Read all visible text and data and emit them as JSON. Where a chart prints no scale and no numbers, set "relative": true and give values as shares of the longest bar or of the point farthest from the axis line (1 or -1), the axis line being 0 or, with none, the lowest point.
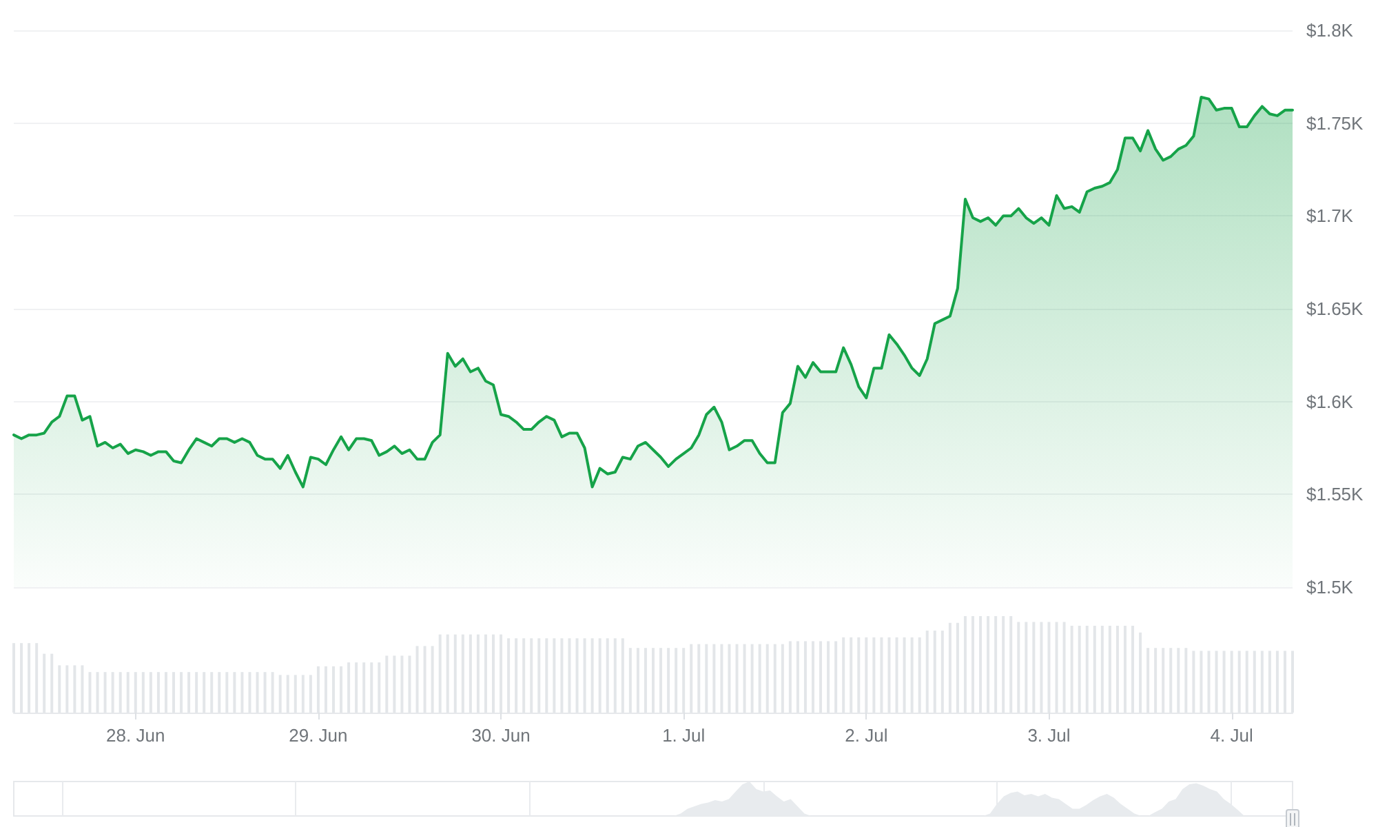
{
  "chart_data": [
    {
      "type": "area",
      "color": "#16a349",
      "grid": "y",
      "tick_labels": "y",
      "xlim": [
        "--06-27T08:00",
        "--07-04T08:00"
      ],
      "ylim": [
        1500,
        1800
      ],
      "yticks": [
        {
          "value": 1500,
          "label": "$1.5K"
        },
        {
          "value": 1550,
          "label": "$1.55K"
        },
        {
          "value": 1600,
          "label": "$1.6K"
        },
        {
          "value": 1650,
          "label": "$1.65K"
        },
        {
          "value": 1700,
          "label": "$1.7K"
        },
        {
          "value": 1750,
          "label": "$1.75K"
        },
        {
          "value": 1800,
          "label": "$1.8K"
        }
      ],
      "x": [
        "--06-27T08:00",
        "--06-27T09:00",
        "--06-27T10:00",
        "--06-27T11:00",
        "--06-27T12:00",
        "--06-27T13:00",
        "--06-27T14:00",
        "--06-27T15:00",
        "--06-27T16:00",
        "--06-27T17:00",
        "--06-27T18:00",
        "--06-27T19:00",
        "--06-27T20:00",
        "--06-27T21:00",
        "--06-27T22:00",
        "--06-27T23:00",
        "--06-28T00:00",
        "--06-28T01:00",
        "--06-28T02:00",
        "--06-28T03:00",
        "--06-28T04:00",
        "--06-28T05:00",
        "--06-28T06:00",
        "--06-28T07:00",
        "--06-28T08:00",
        "--06-28T09:00",
        "--06-28T10:00",
        "--06-28T11:00",
        "--06-28T12:00",
        "--06-28T13:00",
        "--06-28T14:00",
        "--06-28T15:00",
        "--06-28T16:00",
        "--06-28T17:00",
        "--06-28T18:00",
        "--06-28T19:00",
        "--06-28T20:00",
        "--06-28T21:00",
        "--06-28T22:00",
        "--06-28T23:00",
        "--06-29T00:00",
        "--06-29T01:00",
        "--06-29T02:00",
        "--06-29T03:00",
        "--06-29T04:00",
        "--06-29T05:00",
        "--06-29T06:00",
        "--06-29T07:00",
        "--06-29T08:00",
        "--06-29T09:00",
        "--06-29T10:00",
        "--06-29T11:00",
        "--06-29T12:00",
        "--06-29T13:00",
        "--06-29T14:00",
        "--06-29T15:00",
        "--06-29T16:00",
        "--06-29T17:00",
        "--06-29T18:00",
        "--06-29T19:00",
        "--06-29T20:00",
        "--06-29T21:00",
        "--06-29T22:00",
        "--06-29T23:00",
        "--06-30T00:00",
        "--06-30T01:00",
        "--06-30T02:00",
        "--06-30T03:00",
        "--06-30T04:00",
        "--06-30T05:00",
        "--06-30T06:00",
        "--06-30T07:00",
        "--06-30T08:00",
        "--06-30T09:00",
        "--06-30T10:00",
        "--06-30T11:00",
        "--06-30T12:00",
        "--06-30T13:00",
        "--06-30T14:00",
        "--06-30T15:00",
        "--06-30T16:00",
        "--06-30T17:00",
        "--06-30T18:00",
        "--06-30T19:00",
        "--06-30T20:00",
        "--06-30T21:00",
        "--06-30T22:00",
        "--06-30T23:00",
        "--07-01T00:00",
        "--07-01T01:00",
        "--07-01T02:00",
        "--07-01T03:00",
        "--07-01T04:00",
        "--07-01T05:00",
        "--07-01T06:00",
        "--07-01T07:00",
        "--07-01T08:00",
        "--07-01T09:00",
        "--07-01T10:00",
        "--07-01T11:00",
        "--07-01T12:00",
        "--07-01T13:00",
        "--07-01T14:00",
        "--07-01T15:00",
        "--07-01T16:00",
        "--07-01T17:00",
        "--07-01T18:00",
        "--07-01T19:00",
        "--07-01T20:00",
        "--07-01T21:00",
        "--07-01T22:00",
        "--07-01T23:00",
        "--07-02T00:00",
        "--07-02T01:00",
        "--07-02T02:00",
        "--07-02T03:00",
        "--07-02T04:00",
        "--07-02T05:00",
        "--07-02T06:00",
        "--07-02T07:00",
        "--07-02T08:00",
        "--07-02T09:00",
        "--07-02T10:00",
        "--07-02T11:00",
        "--07-02T12:00",
        "--07-02T13:00",
        "--07-02T14:00",
        "--07-02T15:00",
        "--07-02T16:00",
        "--07-02T17:00",
        "--07-02T18:00",
        "--07-02T19:00",
        "--07-02T20:00",
        "--07-02T21:00",
        "--07-02T22:00",
        "--07-02T23:00",
        "--07-03T00:00",
        "--07-03T01:00",
        "--07-03T02:00",
        "--07-03T03:00",
        "--07-03T04:00",
        "--07-03T05:00",
        "--07-03T06:00",
        "--07-03T07:00",
        "--07-03T08:00",
        "--07-03T09:00",
        "--07-03T10:00",
        "--07-03T11:00",
        "--07-03T12:00",
        "--07-03T13:00",
        "--07-03T14:00",
        "--07-03T15:00",
        "--07-03T16:00",
        "--07-03T17:00",
        "--07-03T18:00",
        "--07-03T19:00",
        "--07-03T20:00",
        "--07-03T21:00",
        "--07-03T22:00",
        "--07-03T23:00",
        "--07-04T00:00",
        "--07-04T01:00",
        "--07-04T02:00",
        "--07-04T03:00",
        "--07-04T04:00",
        "--07-04T05:00",
        "--07-04T06:00",
        "--07-04T07:00",
        "--07-04T08:00"
      ],
      "values": [
        1582,
        1580,
        1582,
        1582,
        1583,
        1589,
        1592,
        1603,
        1603,
        1590,
        1592,
        1576,
        1578,
        1575,
        1577,
        1572,
        1574,
        1573,
        1571,
        1573,
        1573,
        1568,
        1567,
        1574,
        1580,
        1578,
        1576,
        1580,
        1580,
        1578,
        1580,
        1578,
        1571,
        1569,
        1569,
        1564,
        1571,
        1562,
        1554,
        1570,
        1569,
        1566,
        1574,
        1581,
        1574,
        1580,
        1580,
        1579,
        1571,
        1573,
        1576,
        1572,
        1574,
        1569,
        1569,
        1578,
        1582,
        1626,
        1619,
        1623,
        1616,
        1618,
        1611,
        1609,
        1593,
        1592,
        1589,
        1585,
        1585,
        1589,
        1592,
        1590,
        1581,
        1583,
        1583,
        1575,
        1554,
        1564,
        1561,
        1562,
        1570,
        1569,
        1576,
        1578,
        1574,
        1570,
        1565,
        1569,
        1572,
        1575,
        1582,
        1593,
        1597,
        1589,
        1574,
        1576,
        1579,
        1579,
        1572,
        1567,
        1567,
        1594,
        1599,
        1619,
        1613,
        1621,
        1616,
        1616,
        1616,
        1629,
        1620,
        1608,
        1602,
        1618,
        1618,
        1636,
        1631,
        1625,
        1618,
        1614,
        1623,
        1642,
        1644,
        1646,
        1661,
        1709,
        1699,
        1697,
        1699,
        1695,
        1700,
        1700,
        1704,
        1699,
        1696,
        1699,
        1695,
        1711,
        1704,
        1705,
        1702,
        1713,
        1715,
        1716,
        1718,
        1725,
        1742,
        1742,
        1735,
        1746,
        1736,
        1730,
        1732,
        1736,
        1738,
        1743,
        1764,
        1763,
        1757,
        1758,
        1758,
        1748,
        1748,
        1754,
        1759,
        1755,
        1754,
        1757,
        1757
      ]
    },
    {
      "type": "bar",
      "relative": true,
      "color": "#e3e6e9",
      "xlim": [
        "--06-27T08:00",
        "--07-04T08:00"
      ],
      "xticks": [
        {
          "value": "--06-28",
          "label": "28. Jun"
        },
        {
          "value": "--06-29",
          "label": "29. Jun"
        },
        {
          "value": "--06-30",
          "label": "30. Jun"
        },
        {
          "value": "--07-01",
          "label": "1. Jul"
        },
        {
          "value": "--07-02",
          "label": "2. Jul"
        },
        {
          "value": "--07-03",
          "label": "3. Jul"
        },
        {
          "value": "--07-04",
          "label": "4. Jul"
        }
      ],
      "x": [
        "--06-27T08:00",
        "--06-27T09:00",
        "--06-27T10:00",
        "--06-27T11:00",
        "--06-27T12:00",
        "--06-27T13:00",
        "--06-27T14:00",
        "--06-27T15:00",
        "--06-27T16:00",
        "--06-27T17:00",
        "--06-27T18:00",
        "--06-27T19:00",
        "--06-27T20:00",
        "--06-27T21:00",
        "--06-27T22:00",
        "--06-27T23:00",
        "--06-28T00:00",
        "--06-28T01:00",
        "--06-28T02:00",
        "--06-28T03:00",
        "--06-28T04:00",
        "--06-28T05:00",
        "--06-28T06:00",
        "--06-28T07:00",
        "--06-28T08:00",
        "--06-28T09:00",
        "--06-28T10:00",
        "--06-28T11:00",
        "--06-28T12:00",
        "--06-28T13:00",
        "--06-28T14:00",
        "--06-28T15:00",
        "--06-28T16:00",
        "--06-28T17:00",
        "--06-28T18:00",
        "--06-28T19:00",
        "--06-28T20:00",
        "--06-28T21:00",
        "--06-28T22:00",
        "--06-28T23:00",
        "--06-29T00:00",
        "--06-29T01:00",
        "--06-29T02:00",
        "--06-29T03:00",
        "--06-29T04:00",
        "--06-29T05:00",
        "--06-29T06:00",
        "--06-29T07:00",
        "--06-29T08:00",
        "--06-29T09:00",
        "--06-29T10:00",
        "--06-29T11:00",
        "--06-29T12:00",
        "--06-29T13:00",
        "--06-29T14:00",
        "--06-29T15:00",
        "--06-29T16:00",
        "--06-29T17:00",
        "--06-29T18:00",
        "--06-29T19:00",
        "--06-29T20:00",
        "--06-29T21:00",
        "--06-29T22:00",
        "--06-29T23:00",
        "--06-30T00:00",
        "--06-30T01:00",
        "--06-30T02:00",
        "--06-30T03:00",
        "--06-30T04:00",
        "--06-30T05:00",
        "--06-30T06:00",
        "--06-30T07:00",
        "--06-30T08:00",
        "--06-30T09:00",
        "--06-30T10:00",
        "--06-30T11:00",
        "--06-30T12:00",
        "--06-30T13:00",
        "--06-30T14:00",
        "--06-30T15:00",
        "--06-30T16:00",
        "--06-30T17:00",
        "--06-30T18:00",
        "--06-30T19:00",
        "--06-30T20:00",
        "--06-30T21:00",
        "--06-30T22:00",
        "--06-30T23:00",
        "--07-01T00:00",
        "--07-01T01:00",
        "--07-01T02:00",
        "--07-01T03:00",
        "--07-01T04:00",
        "--07-01T05:00",
        "--07-01T06:00",
        "--07-01T07:00",
        "--07-01T08:00",
        "--07-01T09:00",
        "--07-01T10:00",
        "--07-01T11:00",
        "--07-01T12:00",
        "--07-01T13:00",
        "--07-01T14:00",
        "--07-01T15:00",
        "--07-01T16:00",
        "--07-01T17:00",
        "--07-01T18:00",
        "--07-01T19:00",
        "--07-01T20:00",
        "--07-01T21:00",
        "--07-01T22:00",
        "--07-01T23:00",
        "--07-02T00:00",
        "--07-02T01:00",
        "--07-02T02:00",
        "--07-02T03:00",
        "--07-02T04:00",
        "--07-02T05:00",
        "--07-02T06:00",
        "--07-02T07:00",
        "--07-02T08:00",
        "--07-02T09:00",
        "--07-02T10:00",
        "--07-02T11:00",
        "--07-02T12:00",
        "--07-02T13:00",
        "--07-02T14:00",
        "--07-02T15:00",
        "--07-02T16:00",
        "--07-02T17:00",
        "--07-02T18:00",
        "--07-02T19:00",
        "--07-02T20:00",
        "--07-02T21:00",
        "--07-02T22:00",
        "--07-02T23:00",
        "--07-03T00:00",
        "--07-03T01:00",
        "--07-03T02:00",
        "--07-03T03:00",
        "--07-03T04:00",
        "--07-03T05:00",
        "--07-03T06:00",
        "--07-03T07:00",
        "--07-03T08:00",
        "--07-03T09:00",
        "--07-03T10:00",
        "--07-03T11:00",
        "--07-03T12:00",
        "--07-03T13:00",
        "--07-03T14:00",
        "--07-03T15:00",
        "--07-03T16:00",
        "--07-03T17:00",
        "--07-03T18:00",
        "--07-03T19:00",
        "--07-03T20:00",
        "--07-03T21:00",
        "--07-03T22:00",
        "--07-03T23:00",
        "--07-04T00:00",
        "--07-04T01:00",
        "--07-04T02:00",
        "--07-04T03:00",
        "--07-04T04:00",
        "--07-04T05:00",
        "--07-04T06:00",
        "--07-04T07:00",
        "--07-04T08:00"
      ],
      "values": [
        0.72,
        0.72,
        0.72,
        0.72,
        0.61,
        0.61,
        0.49,
        0.49,
        0.49,
        0.49,
        0.42,
        0.42,
        0.42,
        0.42,
        0.42,
        0.42,
        0.42,
        0.42,
        0.42,
        0.42,
        0.42,
        0.42,
        0.42,
        0.42,
        0.42,
        0.42,
        0.42,
        0.42,
        0.42,
        0.42,
        0.42,
        0.42,
        0.42,
        0.42,
        0.42,
        0.39,
        0.39,
        0.39,
        0.39,
        0.39,
        0.48,
        0.48,
        0.48,
        0.48,
        0.52,
        0.52,
        0.52,
        0.52,
        0.52,
        0.59,
        0.59,
        0.59,
        0.59,
        0.69,
        0.69,
        0.69,
        0.81,
        0.81,
        0.81,
        0.81,
        0.81,
        0.81,
        0.81,
        0.81,
        0.81,
        0.77,
        0.77,
        0.77,
        0.77,
        0.77,
        0.77,
        0.77,
        0.77,
        0.77,
        0.77,
        0.77,
        0.77,
        0.77,
        0.77,
        0.77,
        0.77,
        0.67,
        0.67,
        0.67,
        0.67,
        0.67,
        0.67,
        0.67,
        0.67,
        0.71,
        0.71,
        0.71,
        0.71,
        0.71,
        0.71,
        0.71,
        0.71,
        0.71,
        0.71,
        0.71,
        0.71,
        0.71,
        0.74,
        0.74,
        0.74,
        0.74,
        0.74,
        0.74,
        0.74,
        0.78,
        0.78,
        0.78,
        0.78,
        0.78,
        0.78,
        0.78,
        0.78,
        0.78,
        0.78,
        0.78,
        0.85,
        0.85,
        0.85,
        0.93,
        0.93,
        1,
        1,
        1,
        1,
        1,
        1,
        1,
        0.94,
        0.94,
        0.94,
        0.94,
        0.94,
        0.94,
        0.94,
        0.9,
        0.9,
        0.9,
        0.9,
        0.9,
        0.9,
        0.9,
        0.9,
        0.9,
        0.83,
        0.67,
        0.67,
        0.67,
        0.67,
        0.67,
        0.67,
        0.64,
        0.64,
        0.64,
        0.64,
        0.64,
        0.64,
        0.64,
        0.64,
        0.64,
        0.64,
        0.64,
        0.64,
        0.64,
        0.64
      ]
    },
    {
      "type": "area",
      "relative": true,
      "color": "#e8ebee",
      "grid": "x",
      "categories": [
        null,
        null,
        null,
        null,
        null,
        null,
        null,
        null,
        null,
        null,
        null,
        null,
        null,
        null,
        null,
        null,
        null,
        null,
        null,
        null,
        null,
        null,
        null,
        null,
        null,
        null,
        null,
        null,
        null,
        null,
        null,
        null,
        null,
        null,
        null,
        null,
        null,
        null,
        null,
        null,
        null,
        null,
        null,
        null,
        null,
        null,
        null,
        null,
        null,
        null,
        null,
        null,
        null,
        null,
        null,
        null,
        null,
        null,
        null,
        null,
        null,
        null,
        null,
        null,
        null,
        null,
        null,
        null,
        null,
        null,
        null,
        null,
        null,
        null,
        null,
        null,
        null,
        null,
        null,
        null,
        null,
        null,
        null,
        null,
        null,
        null,
        null,
        null,
        null,
        null,
        null,
        null,
        null,
        null,
        null,
        null,
        null,
        null,
        null,
        null,
        null,
        null,
        null,
        null,
        null,
        null,
        null,
        null,
        null,
        null,
        null,
        null,
        null,
        null,
        null,
        null,
        null,
        null,
        null,
        null,
        null,
        null,
        null,
        null,
        null,
        null,
        null,
        null,
        null,
        null,
        null,
        null,
        null,
        null,
        null,
        null,
        null,
        null,
        null,
        null,
        null,
        null,
        null,
        null,
        null,
        null,
        null,
        null,
        null,
        null,
        null,
        null,
        null,
        null,
        null,
        null,
        null,
        null,
        null,
        null,
        null,
        null,
        null,
        null,
        null,
        null,
        null,
        null,
        null,
        null,
        null,
        null,
        null,
        null,
        null,
        null,
        null,
        null,
        null,
        null,
        null,
        null,
        null,
        null,
        null,
        null,
        null
      ],
      "values": [
        0,
        0,
        0,
        0,
        0,
        0,
        0,
        0,
        0,
        0,
        0,
        0,
        0,
        0,
        0,
        0,
        0,
        0,
        0,
        0,
        0,
        0,
        0,
        0,
        0,
        0,
        0,
        0,
        0,
        0,
        0,
        0,
        0,
        0,
        0,
        0,
        0,
        0,
        0,
        0,
        0,
        0,
        0,
        0,
        0,
        0,
        0,
        0,
        0,
        0,
        0,
        0,
        0,
        0,
        0,
        0,
        0,
        0,
        0,
        0,
        0,
        0,
        0,
        0,
        0,
        0,
        0,
        0,
        0,
        0,
        0,
        0,
        0,
        0,
        0,
        0,
        0,
        0,
        0,
        0,
        0,
        0,
        0,
        0,
        0,
        0,
        0,
        0,
        0,
        0,
        0,
        0,
        0,
        0,
        0,
        0,
        0,
        0.07,
        0.21,
        0.28,
        0.35,
        0.39,
        0.46,
        0.42,
        0.49,
        0.71,
        0.92,
        1,
        0.78,
        0.71,
        0.74,
        0.57,
        0.42,
        0.49,
        0.28,
        0.07,
        0,
        0,
        0,
        0,
        0,
        0,
        0,
        0,
        0,
        0,
        0,
        0,
        0,
        0,
        0,
        0,
        0,
        0,
        0,
        0,
        0,
        0,
        0,
        0,
        0,
        0,
        0.07,
        0.35,
        0.57,
        0.67,
        0.71,
        0.6,
        0.64,
        0.57,
        0.64,
        0.53,
        0.49,
        0.35,
        0.21,
        0.21,
        0.32,
        0.46,
        0.57,
        0.64,
        0.53,
        0.35,
        0.21,
        0.07,
        0,
        0,
        0.11,
        0.21,
        0.42,
        0.49,
        0.78,
        0.92,
        0.95,
        0.88,
        0.78,
        0.71,
        0.49,
        0.35,
        0.18,
        0,
        0,
        0,
        0,
        0,
        0,
        0,
        null
      ]
    }
  ]
}
